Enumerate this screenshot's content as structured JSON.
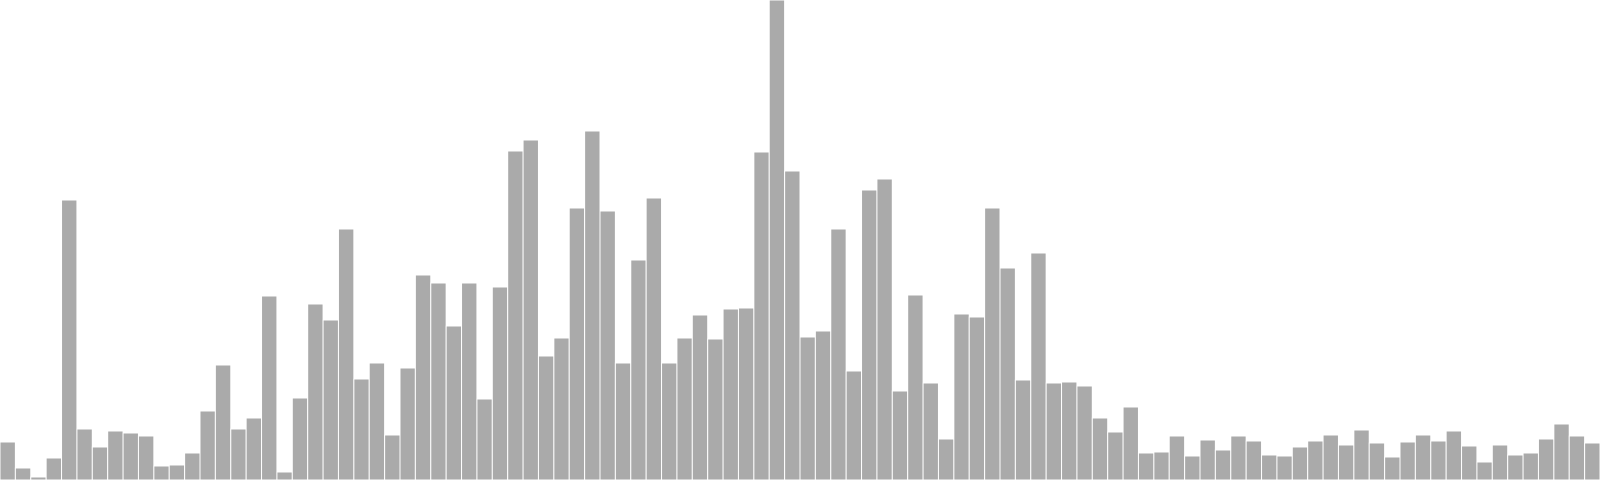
{
  "chart_data": {
    "type": "bar",
    "title": "",
    "xlabel": "",
    "ylabel": "",
    "grid": false,
    "legend": "none",
    "color": "#aaaaaa",
    "ylim": [
      0,
      480
    ],
    "values": [
      38,
      12,
      3,
      22,
      280,
      51,
      33,
      49,
      47,
      44,
      14,
      15,
      27,
      69,
      115,
      51,
      62,
      184,
      8,
      82,
      176,
      160,
      251,
      101,
      117,
      45,
      112,
      205,
      197,
      154,
      197,
      81,
      193,
      329,
      340,
      124,
      142,
      272,
      349,
      269,
      117,
      220,
      282,
      117,
      142,
      165,
      141,
      171,
      172,
      328,
      480,
      309,
      143,
      149,
      251,
      109,
      290,
      301,
      89,
      185,
      97,
      41,
      166,
      163,
      272,
      212,
      100,
      227,
      97,
      98,
      94,
      62,
      48,
      73,
      27,
      28,
      44,
      24,
      40,
      30,
      44,
      39,
      25,
      24,
      33,
      39,
      45,
      35,
      50,
      37,
      23,
      38,
      45,
      39,
      49,
      34,
      18,
      35,
      25,
      27,
      41,
      56,
      44,
      37
    ]
  }
}
